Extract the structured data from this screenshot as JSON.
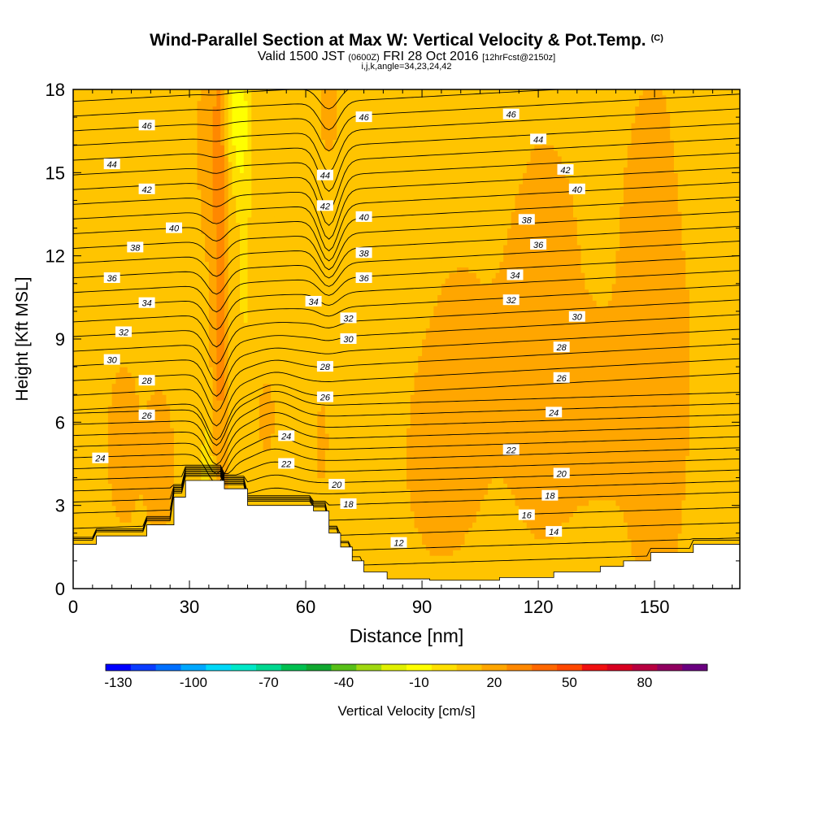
{
  "title": {
    "main": "Wind-Parallel Section at Max W: Vertical Velocity & Pot.Temp.",
    "copyright": "(C)",
    "valid_prefix": "Valid 1500 JST",
    "valid_z": "(0600Z)",
    "valid_date": "FRI 28 Oct 2016",
    "valid_fcst": "[12hrFcst@2150z]",
    "indices": "i,j,k,angle=34,23,24,42"
  },
  "chart_data": {
    "type": "heatmap",
    "xlabel": "Distance [nm]",
    "ylabel": "Height [Kft MSL]",
    "xlim": [
      0,
      172
    ],
    "ylim": [
      0,
      18
    ],
    "x_ticks": [
      0,
      30,
      60,
      90,
      120,
      150
    ],
    "y_ticks": [
      0,
      3,
      6,
      9,
      12,
      15,
      18
    ],
    "colorbar": {
      "label": "Vertical Velocity [cm/s]",
      "tick_labels": [
        "-130",
        "-100",
        "-70",
        "-40",
        "-10",
        "20",
        "50",
        "80"
      ],
      "min": -140,
      "max": 90,
      "step": 10,
      "colors": [
        "#0000ff",
        "#0a3cff",
        "#0070ff",
        "#00a8ff",
        "#00d8f8",
        "#00e8c8",
        "#00d890",
        "#00c050",
        "#10a830",
        "#58c018",
        "#a0d810",
        "#e0f000",
        "#ffff00",
        "#ffe000",
        "#ffc400",
        "#ffa600",
        "#ff8800",
        "#ff6800",
        "#ff4800",
        "#f01010",
        "#d80020",
        "#b80040",
        "#900060",
        "#6a0080"
      ]
    },
    "terrain": [
      [
        0,
        1.6
      ],
      [
        6,
        1.6
      ],
      [
        6,
        1.9
      ],
      [
        19,
        1.9
      ],
      [
        19,
        2.3
      ],
      [
        26,
        2.3
      ],
      [
        26,
        3.3
      ],
      [
        29,
        3.3
      ],
      [
        29,
        3.9
      ],
      [
        39,
        3.9
      ],
      [
        39,
        3.6
      ],
      [
        45,
        3.6
      ],
      [
        45,
        3.0
      ],
      [
        62,
        3.0
      ],
      [
        62,
        2.8
      ],
      [
        66,
        2.8
      ],
      [
        66,
        2.0
      ],
      [
        69,
        2.0
      ],
      [
        69,
        1.5
      ],
      [
        72,
        1.5
      ],
      [
        72,
        1.0
      ],
      [
        75,
        1.0
      ],
      [
        75,
        0.6
      ],
      [
        81,
        0.6
      ],
      [
        81,
        0.35
      ],
      [
        92,
        0.35
      ],
      [
        92,
        0.3
      ],
      [
        110,
        0.3
      ],
      [
        110,
        0.4
      ],
      [
        124,
        0.4
      ],
      [
        124,
        0.6
      ],
      [
        136,
        0.6
      ],
      [
        136,
        0.8
      ],
      [
        142,
        0.8
      ],
      [
        142,
        1.0
      ],
      [
        149,
        1.0
      ],
      [
        149,
        1.3
      ],
      [
        160,
        1.3
      ],
      [
        160,
        1.6
      ],
      [
        172,
        1.6
      ]
    ],
    "theta_contours": {
      "levels": [
        12,
        14,
        16,
        18,
        20,
        22,
        24,
        26,
        28,
        30,
        32,
        34,
        36,
        38,
        40,
        42,
        44,
        46
      ],
      "labels": [
        {
          "value": "12",
          "x": 84,
          "y": 1.65
        },
        {
          "value": "14",
          "x": 124,
          "y": 2.05
        },
        {
          "value": "16",
          "x": 117,
          "y": 2.65
        },
        {
          "value": "18",
          "x": 71,
          "y": 3.05
        },
        {
          "value": "18",
          "x": 123,
          "y": 3.35
        },
        {
          "value": "20",
          "x": 68,
          "y": 3.75
        },
        {
          "value": "20",
          "x": 126,
          "y": 4.15
        },
        {
          "value": "22",
          "x": 55,
          "y": 4.5
        },
        {
          "value": "22",
          "x": 113,
          "y": 5.0
        },
        {
          "value": "24",
          "x": 7,
          "y": 4.7
        },
        {
          "value": "24",
          "x": 55,
          "y": 5.5
        },
        {
          "value": "24",
          "x": 124,
          "y": 6.35
        },
        {
          "value": "26",
          "x": 19,
          "y": 6.25
        },
        {
          "value": "26",
          "x": 65,
          "y": 6.9
        },
        {
          "value": "26",
          "x": 126,
          "y": 7.6
        },
        {
          "value": "28",
          "x": 19,
          "y": 7.5
        },
        {
          "value": "28",
          "x": 65,
          "y": 8.0
        },
        {
          "value": "28",
          "x": 126,
          "y": 8.7
        },
        {
          "value": "30",
          "x": 10,
          "y": 8.25
        },
        {
          "value": "30",
          "x": 71,
          "y": 9.0
        },
        {
          "value": "30",
          "x": 130,
          "y": 9.8
        },
        {
          "value": "32",
          "x": 13,
          "y": 9.25
        },
        {
          "value": "32",
          "x": 71,
          "y": 9.75
        },
        {
          "value": "32",
          "x": 113,
          "y": 10.4
        },
        {
          "value": "34",
          "x": 19,
          "y": 10.3
        },
        {
          "value": "34",
          "x": 62,
          "y": 10.35
        },
        {
          "value": "34",
          "x": 114,
          "y": 11.3
        },
        {
          "value": "36",
          "x": 10,
          "y": 11.2
        },
        {
          "value": "36",
          "x": 75,
          "y": 11.2
        },
        {
          "value": "36",
          "x": 120,
          "y": 12.4
        },
        {
          "value": "38",
          "x": 16,
          "y": 12.3
        },
        {
          "value": "38",
          "x": 75,
          "y": 12.1
        },
        {
          "value": "38",
          "x": 117,
          "y": 13.3
        },
        {
          "value": "40",
          "x": 26,
          "y": 13.0
        },
        {
          "value": "40",
          "x": 75,
          "y": 13.4
        },
        {
          "value": "40",
          "x": 130,
          "y": 14.4
        },
        {
          "value": "42",
          "x": 19,
          "y": 14.4
        },
        {
          "value": "42",
          "x": 65,
          "y": 13.8
        },
        {
          "value": "42",
          "x": 127,
          "y": 15.1
        },
        {
          "value": "44",
          "x": 10,
          "y": 15.3
        },
        {
          "value": "44",
          "x": 65,
          "y": 14.9
        },
        {
          "value": "44",
          "x": 120,
          "y": 16.2
        },
        {
          "value": "46",
          "x": 19,
          "y": 16.7
        },
        {
          "value": "46",
          "x": 75,
          "y": 17.0
        },
        {
          "value": "46",
          "x": 113,
          "y": 17.1
        }
      ]
    }
  }
}
